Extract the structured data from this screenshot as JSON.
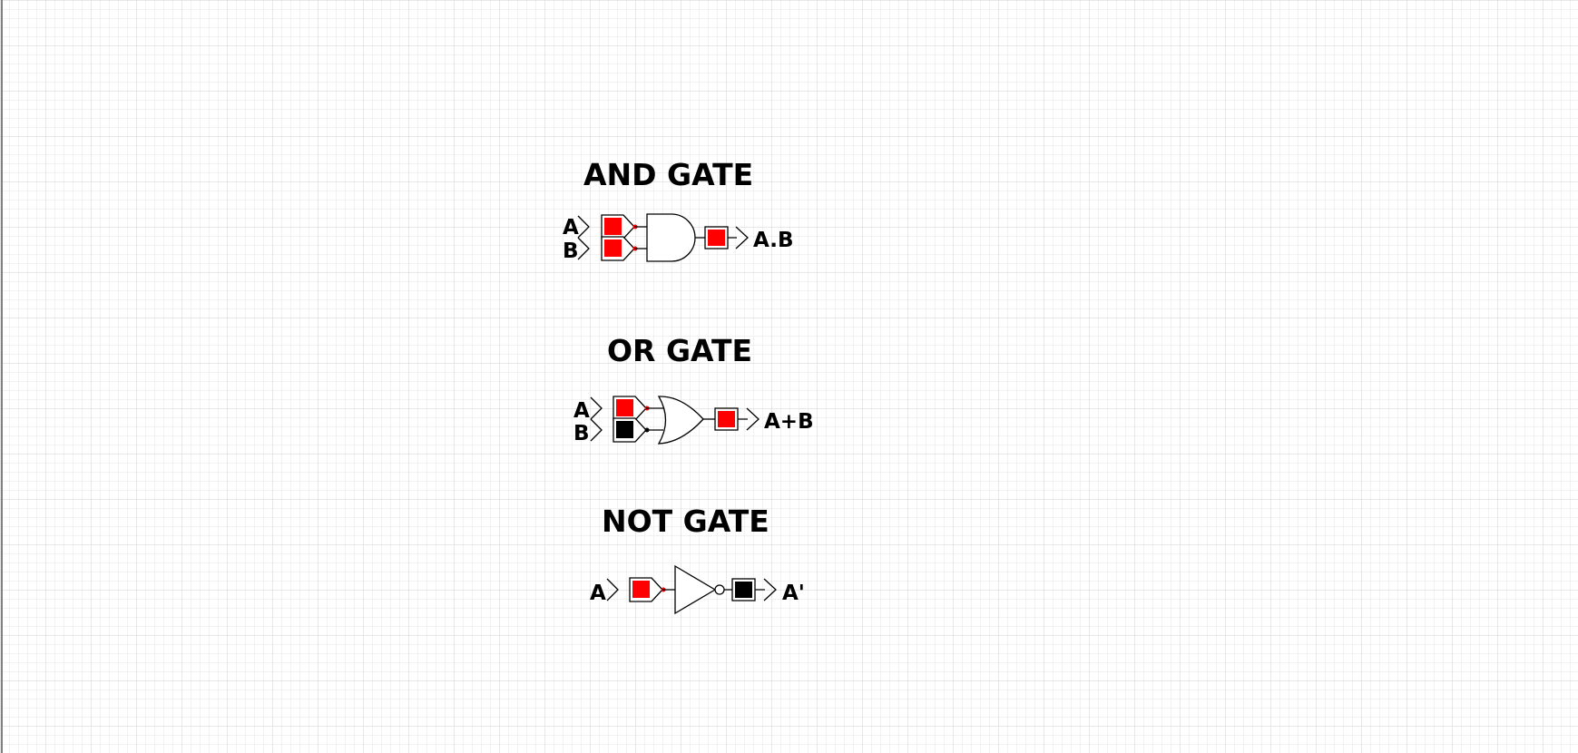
{
  "canvas": {
    "background": "#ffffff",
    "grid_minor_color": "#e6e6e6",
    "grid_major_color": "#d2d2d2",
    "border_color": "#808080"
  },
  "colors": {
    "high": "#ff0000",
    "low": "#000000"
  },
  "and_gate": {
    "title": "AND GATE",
    "input_a_label": "A",
    "input_b_label": "B",
    "output_label": "A.B",
    "input_a_state": "high",
    "input_b_state": "high",
    "output_state": "high"
  },
  "or_gate": {
    "title": "OR GATE",
    "input_a_label": "A",
    "input_b_label": "B",
    "output_label": "A+B",
    "input_a_state": "high",
    "input_b_state": "low",
    "output_state": "high"
  },
  "not_gate": {
    "title": "NOT GATE",
    "input_a_label": "A",
    "output_label": "A'",
    "input_a_state": "high",
    "output_state": "low"
  }
}
